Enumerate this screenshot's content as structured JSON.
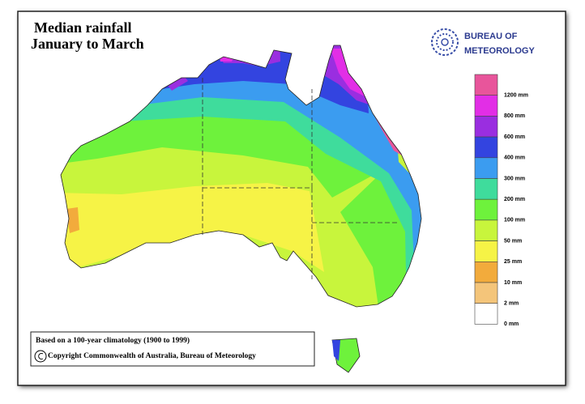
{
  "title": [
    "Median rainfall",
    "January to March"
  ],
  "logo": [
    "BUREAU OF",
    "METEOROLOGY"
  ],
  "legend": [
    {
      "color": "#e8559b",
      "label": "1200 mm"
    },
    {
      "color": "#e22ee6",
      "label": "800 mm"
    },
    {
      "color": "#9a2ee0",
      "label": "600 mm"
    },
    {
      "color": "#3344e0",
      "label": "400 mm"
    },
    {
      "color": "#3b9cf0",
      "label": "300 mm"
    },
    {
      "color": "#3fdc9c",
      "label": "200 mm"
    },
    {
      "color": "#6ef23c",
      "label": "100 mm"
    },
    {
      "color": "#c8f53c",
      "label": "50 mm"
    },
    {
      "color": "#f6f346",
      "label": "25 mm"
    },
    {
      "color": "#f2ab3c",
      "label": "10 mm"
    },
    {
      "color": "#f4c57a",
      "label": "2 mm"
    },
    {
      "color": "#ffffff",
      "label": "0 mm"
    }
  ],
  "footer": [
    "Based on a 100-year climatology (1900 to 1999)",
    "Copyright Commonwealth of Australia, Bureau of Meteorology"
  ]
}
